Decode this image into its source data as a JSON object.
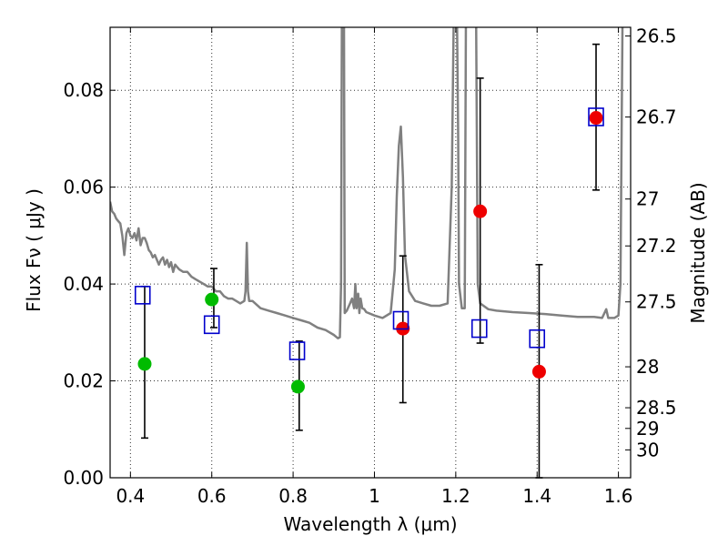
{
  "chart_data": {
    "type": "scatter",
    "xlabel": "Wavelength  λ (μm)",
    "ylabel": "Flux  Fν  ( μJy )",
    "y2label": "Magnitude (AB)",
    "xlim": [
      0.35,
      1.63
    ],
    "ylim": [
      0.0,
      0.093
    ],
    "grid": true,
    "x_ticks": [
      0.4,
      0.6,
      0.8,
      1.0,
      1.2,
      1.4,
      1.6
    ],
    "x_tick_labels": [
      "0.4",
      "0.6",
      "0.8",
      "1",
      "1.2",
      "1.4",
      "1.6"
    ],
    "y_ticks": [
      0.0,
      0.02,
      0.04,
      0.06,
      0.08
    ],
    "y_tick_labels": [
      "0.00",
      "0.02",
      "0.04",
      "0.06",
      "0.08"
    ],
    "magnitude_ticks": [
      {
        "label": "26.5",
        "mag": 26.5
      },
      {
        "label": "26.7",
        "mag": 26.72
      },
      {
        "label": "27",
        "mag": 27.0
      },
      {
        "label": "27.2",
        "mag": 27.2
      },
      {
        "label": "27.5",
        "mag": 27.5
      },
      {
        "label": "28",
        "mag": 28.0
      },
      {
        "label": "28.5",
        "mag": 28.5
      },
      {
        "label": "29",
        "mag": 28.88
      },
      {
        "label": "30",
        "mag": 29.5
      }
    ],
    "series": [
      {
        "kind": "model-spectrum",
        "color": "#808080",
        "points": [
          [
            0.35,
            0.057
          ],
          [
            0.355,
            0.055
          ],
          [
            0.36,
            0.0545
          ],
          [
            0.365,
            0.0535
          ],
          [
            0.37,
            0.053
          ],
          [
            0.375,
            0.0525
          ],
          [
            0.38,
            0.05
          ],
          [
            0.385,
            0.046
          ],
          [
            0.39,
            0.0505
          ],
          [
            0.395,
            0.0515
          ],
          [
            0.4,
            0.05
          ],
          [
            0.405,
            0.0495
          ],
          [
            0.41,
            0.0505
          ],
          [
            0.415,
            0.049
          ],
          [
            0.42,
            0.0515
          ],
          [
            0.425,
            0.048
          ],
          [
            0.43,
            0.0495
          ],
          [
            0.435,
            0.0495
          ],
          [
            0.44,
            0.0485
          ],
          [
            0.445,
            0.047
          ],
          [
            0.45,
            0.0465
          ],
          [
            0.455,
            0.0455
          ],
          [
            0.46,
            0.046
          ],
          [
            0.465,
            0.045
          ],
          [
            0.47,
            0.044
          ],
          [
            0.475,
            0.045
          ],
          [
            0.48,
            0.0455
          ],
          [
            0.485,
            0.044
          ],
          [
            0.49,
            0.045
          ],
          [
            0.495,
            0.0435
          ],
          [
            0.5,
            0.0445
          ],
          [
            0.505,
            0.0425
          ],
          [
            0.51,
            0.044
          ],
          [
            0.515,
            0.0435
          ],
          [
            0.52,
            0.043
          ],
          [
            0.53,
            0.0425
          ],
          [
            0.54,
            0.0425
          ],
          [
            0.55,
            0.0415
          ],
          [
            0.56,
            0.041
          ],
          [
            0.57,
            0.0405
          ],
          [
            0.58,
            0.04
          ],
          [
            0.59,
            0.0395
          ],
          [
            0.6,
            0.0395
          ],
          [
            0.61,
            0.0385
          ],
          [
            0.62,
            0.0385
          ],
          [
            0.63,
            0.0375
          ],
          [
            0.64,
            0.037
          ],
          [
            0.65,
            0.037
          ],
          [
            0.66,
            0.0365
          ],
          [
            0.67,
            0.036
          ],
          [
            0.68,
            0.0365
          ],
          [
            0.683,
            0.0385
          ],
          [
            0.686,
            0.0485
          ],
          [
            0.689,
            0.0385
          ],
          [
            0.692,
            0.0365
          ],
          [
            0.7,
            0.0365
          ],
          [
            0.72,
            0.035
          ],
          [
            0.74,
            0.0345
          ],
          [
            0.76,
            0.034
          ],
          [
            0.78,
            0.0335
          ],
          [
            0.8,
            0.033
          ],
          [
            0.82,
            0.0325
          ],
          [
            0.84,
            0.032
          ],
          [
            0.86,
            0.031
          ],
          [
            0.88,
            0.0305
          ],
          [
            0.9,
            0.0295
          ],
          [
            0.91,
            0.0288
          ],
          [
            0.915,
            0.029
          ],
          [
            0.918,
            0.04
          ],
          [
            0.92,
            0.095
          ],
          [
            0.925,
            0.095
          ],
          [
            0.927,
            0.034
          ],
          [
            0.932,
            0.0345
          ],
          [
            0.94,
            0.036
          ],
          [
            0.945,
            0.037
          ],
          [
            0.95,
            0.035
          ],
          [
            0.953,
            0.04
          ],
          [
            0.956,
            0.035
          ],
          [
            0.96,
            0.038
          ],
          [
            0.963,
            0.034
          ],
          [
            0.966,
            0.037
          ],
          [
            0.97,
            0.035
          ],
          [
            0.975,
            0.0348
          ],
          [
            0.98,
            0.0342
          ],
          [
            1.0,
            0.0335
          ],
          [
            1.02,
            0.033
          ],
          [
            1.04,
            0.034
          ],
          [
            1.05,
            0.043
          ],
          [
            1.055,
            0.058
          ],
          [
            1.06,
            0.0685
          ],
          [
            1.065,
            0.0725
          ],
          [
            1.07,
            0.062
          ],
          [
            1.075,
            0.046
          ],
          [
            1.085,
            0.0385
          ],
          [
            1.1,
            0.0365
          ],
          [
            1.12,
            0.036
          ],
          [
            1.14,
            0.0355
          ],
          [
            1.16,
            0.0355
          ],
          [
            1.18,
            0.036
          ],
          [
            1.19,
            0.06
          ],
          [
            1.195,
            0.095
          ],
          [
            1.203,
            0.095
          ],
          [
            1.206,
            0.07
          ],
          [
            1.208,
            0.04
          ],
          [
            1.215,
            0.035
          ],
          [
            1.222,
            0.035
          ],
          [
            1.225,
            0.095
          ],
          [
            1.25,
            0.095
          ],
          [
            1.254,
            0.04
          ],
          [
            1.26,
            0.036
          ],
          [
            1.28,
            0.0348
          ],
          [
            1.3,
            0.0345
          ],
          [
            1.34,
            0.0342
          ],
          [
            1.38,
            0.034
          ],
          [
            1.42,
            0.0338
          ],
          [
            1.46,
            0.0335
          ],
          [
            1.5,
            0.0332
          ],
          [
            1.52,
            0.0332
          ],
          [
            1.54,
            0.0332
          ],
          [
            1.56,
            0.033
          ],
          [
            1.57,
            0.0348
          ],
          [
            1.575,
            0.033
          ],
          [
            1.59,
            0.033
          ],
          [
            1.6,
            0.0335
          ],
          [
            1.605,
            0.04
          ],
          [
            1.61,
            0.095
          ]
        ]
      },
      {
        "kind": "observed",
        "color": "#00bb00",
        "points": [
          [
            0.435,
            0.0235
          ],
          [
            0.6,
            0.0368
          ],
          [
            0.812,
            0.0188
          ]
        ]
      },
      {
        "kind": "observed",
        "color": "#ee0000",
        "points": [
          [
            1.07,
            0.0308
          ],
          [
            1.26,
            0.055
          ],
          [
            1.405,
            0.0219
          ],
          [
            1.545,
            0.0743
          ]
        ]
      },
      {
        "kind": "model-band",
        "color": "#0000cc",
        "points": [
          [
            0.43,
            0.0377
          ],
          [
            0.6,
            0.0316
          ],
          [
            0.81,
            0.0262
          ],
          [
            1.065,
            0.0325
          ],
          [
            1.258,
            0.0308
          ],
          [
            1.4,
            0.0287
          ],
          [
            1.545,
            0.0745
          ]
        ]
      }
    ],
    "error_bars": [
      {
        "x": 0.435,
        "low": 0.0082,
        "high": 0.0395
      },
      {
        "x": 0.605,
        "low": 0.031,
        "high": 0.0432
      },
      {
        "x": 0.815,
        "low": 0.0098,
        "high": 0.0282
      },
      {
        "x": 1.07,
        "low": 0.0155,
        "high": 0.0458
      },
      {
        "x": 1.26,
        "low": 0.0278,
        "high": 0.0825
      },
      {
        "x": 1.405,
        "low": 0.0,
        "high": 0.044
      },
      {
        "x": 1.545,
        "low": 0.0594,
        "high": 0.0895
      }
    ]
  }
}
